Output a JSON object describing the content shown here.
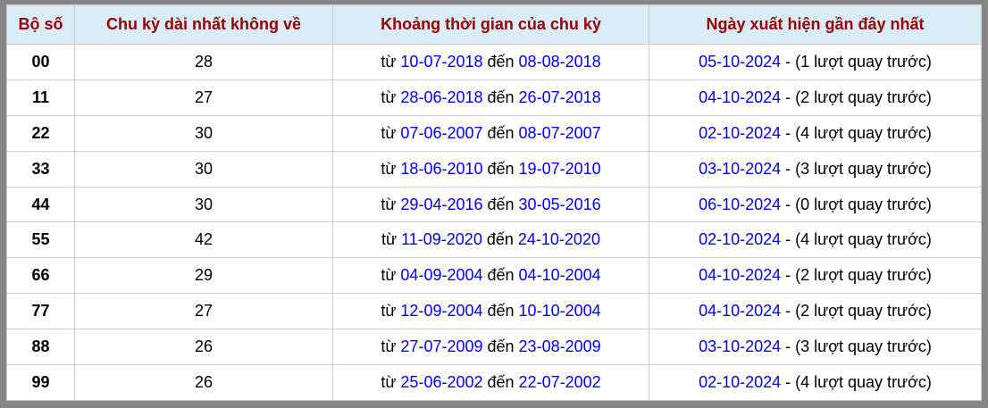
{
  "table": {
    "columns": [
      "Bộ số",
      "Chu kỳ dài nhất không về",
      "Khoảng thời gian của chu kỳ",
      "Ngày xuất hiện gần đây nhất"
    ],
    "from_label": "từ",
    "to_label": "đến",
    "rows": [
      {
        "pair": "00",
        "cycle": "28",
        "from": "10-07-2018",
        "to": "08-08-2018",
        "last_date": "05-10-2024",
        "last_note": "- (1 lượt quay trước)"
      },
      {
        "pair": "11",
        "cycle": "27",
        "from": "28-06-2018",
        "to": "26-07-2018",
        "last_date": "04-10-2024",
        "last_note": "- (2 lượt quay trước)"
      },
      {
        "pair": "22",
        "cycle": "30",
        "from": "07-06-2007",
        "to": "08-07-2007",
        "last_date": "02-10-2024",
        "last_note": "- (4 lượt quay trước)"
      },
      {
        "pair": "33",
        "cycle": "30",
        "from": "18-06-2010",
        "to": "19-07-2010",
        "last_date": "03-10-2024",
        "last_note": "- (3 lượt quay trước)"
      },
      {
        "pair": "44",
        "cycle": "30",
        "from": "29-04-2016",
        "to": "30-05-2016",
        "last_date": "06-10-2024",
        "last_note": "- (0 lượt quay trước)"
      },
      {
        "pair": "55",
        "cycle": "42",
        "from": "11-09-2020",
        "to": "24-10-2020",
        "last_date": "02-10-2024",
        "last_note": "- (4 lượt quay trước)"
      },
      {
        "pair": "66",
        "cycle": "29",
        "from": "04-09-2004",
        "to": "04-10-2004",
        "last_date": "04-10-2024",
        "last_note": "- (2 lượt quay trước)"
      },
      {
        "pair": "77",
        "cycle": "27",
        "from": "12-09-2004",
        "to": "10-10-2004",
        "last_date": "04-10-2024",
        "last_note": "- (2 lượt quay trước)"
      },
      {
        "pair": "88",
        "cycle": "26",
        "from": "27-07-2009",
        "to": "23-08-2009",
        "last_date": "03-10-2024",
        "last_note": "- (3 lượt quay trước)"
      },
      {
        "pair": "99",
        "cycle": "26",
        "from": "25-06-2002",
        "to": "22-07-2002",
        "last_date": "02-10-2024",
        "last_note": "- (4 lượt quay trước)"
      }
    ]
  },
  "colors": {
    "header_bg": "#d9ecf8",
    "header_text": "#990000",
    "link_blue": "#0000EE",
    "grid_line": "#cccccc",
    "outer_border": "#868686"
  }
}
